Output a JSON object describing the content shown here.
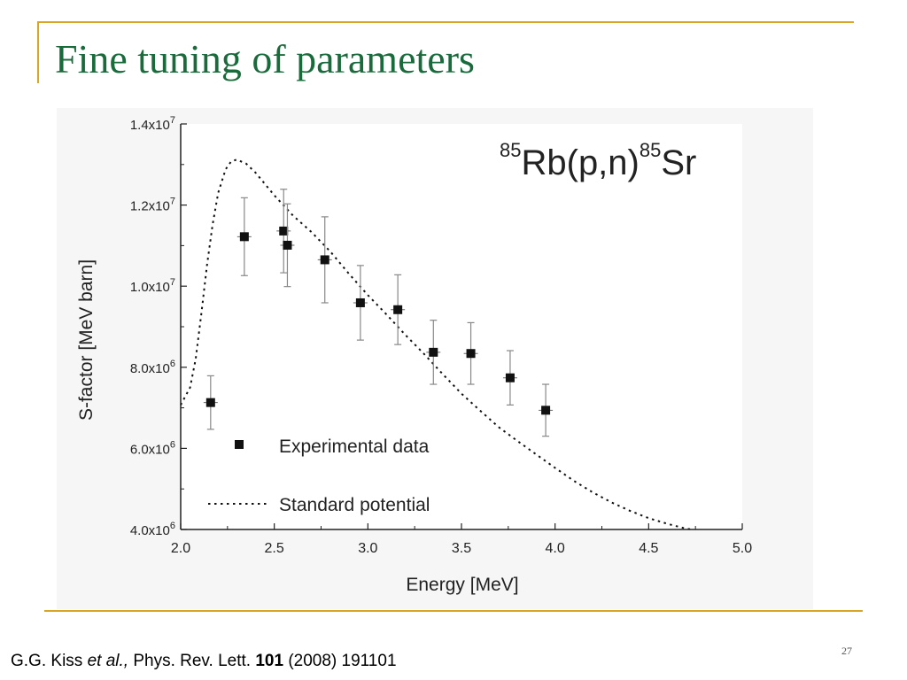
{
  "slide": {
    "title": "Fine tuning of parameters",
    "page_number": "27",
    "citation": {
      "authors": "G.G. Kiss",
      "etal": "et al.,",
      "journal": "Phys. Rev. Lett.",
      "volume": "101",
      "year_pages": "(2008) 191101"
    }
  },
  "colors": {
    "title": "#1a6b3c",
    "frame": "#d9a528",
    "chart_panel": "#f6f6f6"
  },
  "chart_data": {
    "type": "scatter",
    "title_parts": {
      "sup1": "85",
      "base1": "Rb(p,n)",
      "sup2": "85",
      "base2": "Sr"
    },
    "xlabel": "Energy [MeV]",
    "ylabel": "S-factor [MeV barn]",
    "xlim": [
      2.0,
      5.0
    ],
    "ylim": [
      4000000,
      14000000
    ],
    "x_ticks": [
      2.0,
      2.5,
      3.0,
      3.5,
      4.0,
      4.5,
      5.0
    ],
    "x_tick_labels": [
      "2.0",
      "2.5",
      "3.0",
      "3.5",
      "4.0",
      "4.5",
      "5.0"
    ],
    "y_ticks": [
      4000000,
      6000000,
      8000000,
      10000000,
      12000000,
      14000000
    ],
    "y_tick_labels": [
      {
        "mantissa": "4.0x10",
        "exp": "6"
      },
      {
        "mantissa": "6.0x10",
        "exp": "6"
      },
      {
        "mantissa": "8.0x10",
        "exp": "6"
      },
      {
        "mantissa": "1.0x10",
        "exp": "7"
      },
      {
        "mantissa": "1.2x10",
        "exp": "7"
      },
      {
        "mantissa": "1.4x10",
        "exp": "7"
      }
    ],
    "legend": [
      {
        "label": "Experimental data",
        "marker": "square"
      },
      {
        "label": "Standard potential",
        "marker": "dotted-line"
      }
    ],
    "series": [
      {
        "name": "Experimental data",
        "style": "square-marker-with-errorbars",
        "points": [
          {
            "x": 2.16,
            "y": 7130000,
            "yerr": 660000
          },
          {
            "x": 2.34,
            "y": 11220000,
            "yerr": 960000
          },
          {
            "x": 2.55,
            "y": 11360000,
            "yerr": 1030000
          },
          {
            "x": 2.57,
            "y": 11010000,
            "yerr": 1020000
          },
          {
            "x": 2.77,
            "y": 10650000,
            "yerr": 1060000
          },
          {
            "x": 2.96,
            "y": 9590000,
            "yerr": 920000
          },
          {
            "x": 3.16,
            "y": 9420000,
            "yerr": 860000
          },
          {
            "x": 3.35,
            "y": 8370000,
            "yerr": 790000
          },
          {
            "x": 3.55,
            "y": 8340000,
            "yerr": 760000
          },
          {
            "x": 3.76,
            "y": 7740000,
            "yerr": 670000
          },
          {
            "x": 3.95,
            "y": 6940000,
            "yerr": 640000
          }
        ]
      },
      {
        "name": "Standard potential",
        "style": "dotted-line",
        "points": [
          {
            "x": 2.0,
            "y": 7070000
          },
          {
            "x": 2.05,
            "y": 7500000
          },
          {
            "x": 2.08,
            "y": 8200000
          },
          {
            "x": 2.11,
            "y": 9300000
          },
          {
            "x": 2.14,
            "y": 10500000
          },
          {
            "x": 2.17,
            "y": 11500000
          },
          {
            "x": 2.2,
            "y": 12300000
          },
          {
            "x": 2.24,
            "y": 12880000
          },
          {
            "x": 2.27,
            "y": 13080000
          },
          {
            "x": 2.3,
            "y": 13120000
          },
          {
            "x": 2.35,
            "y": 13020000
          },
          {
            "x": 2.4,
            "y": 12800000
          },
          {
            "x": 2.5,
            "y": 12240000
          },
          {
            "x": 2.6,
            "y": 11740000
          },
          {
            "x": 2.7,
            "y": 11330000
          },
          {
            "x": 2.8,
            "y": 10850000
          },
          {
            "x": 2.9,
            "y": 10300000
          },
          {
            "x": 3.0,
            "y": 9780000
          },
          {
            "x": 3.1,
            "y": 9300000
          },
          {
            "x": 3.2,
            "y": 8800000
          },
          {
            "x": 3.3,
            "y": 8330000
          },
          {
            "x": 3.4,
            "y": 7830000
          },
          {
            "x": 3.5,
            "y": 7350000
          },
          {
            "x": 3.6,
            "y": 6930000
          },
          {
            "x": 3.7,
            "y": 6520000
          },
          {
            "x": 3.8,
            "y": 6180000
          },
          {
            "x": 3.9,
            "y": 5850000
          },
          {
            "x": 4.0,
            "y": 5520000
          },
          {
            "x": 4.1,
            "y": 5200000
          },
          {
            "x": 4.2,
            "y": 4920000
          },
          {
            "x": 4.3,
            "y": 4670000
          },
          {
            "x": 4.4,
            "y": 4460000
          },
          {
            "x": 4.5,
            "y": 4280000
          },
          {
            "x": 4.6,
            "y": 4140000
          },
          {
            "x": 4.7,
            "y": 4020000
          },
          {
            "x": 4.74,
            "y": 4000000
          }
        ]
      }
    ]
  }
}
